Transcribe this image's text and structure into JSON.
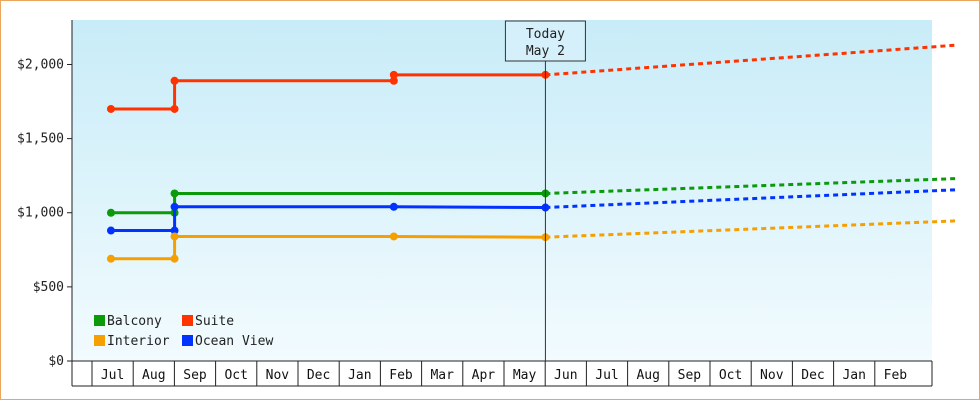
{
  "chart_data": {
    "type": "line",
    "today_marker": {
      "line1": "Today",
      "line2": "May 2"
    },
    "ylim": [
      0,
      2300
    ],
    "y_ticks": [
      {
        "value": 0,
        "label": "$0"
      },
      {
        "value": 500,
        "label": "$500"
      },
      {
        "value": 1000,
        "label": "$1,000"
      },
      {
        "value": 1500,
        "label": "$1,500"
      },
      {
        "value": 2000,
        "label": "$2,000"
      }
    ],
    "months": [
      "Jul",
      "Aug",
      "Sep",
      "Oct",
      "Nov",
      "Dec",
      "Jan",
      "Feb",
      "Mar",
      "Apr",
      "May",
      "Jun",
      "Jul",
      "Aug",
      "Sep",
      "Oct",
      "Nov",
      "Dec",
      "Jan",
      "Feb"
    ],
    "legend": [
      {
        "name": "Balcony",
        "color": "#0a9a0a"
      },
      {
        "name": "Suite",
        "color": "#ff3300"
      },
      {
        "name": "Interior",
        "color": "#f5a000"
      },
      {
        "name": "Ocean View",
        "color": "#0033ff"
      }
    ],
    "series": [
      {
        "name": "Suite",
        "color": "#ff3300",
        "history": [
          [
            "2024-06-15",
            1700
          ],
          [
            "2024-08-01",
            1700
          ],
          [
            "2024-08-01",
            1890
          ],
          [
            "2025-01-10",
            1890
          ],
          [
            "2025-01-10",
            1930
          ],
          [
            "2025-05-02",
            1930
          ]
        ],
        "points": [
          [
            "2024-06-15",
            1700
          ],
          [
            "2024-08-01",
            1700
          ],
          [
            "2024-08-01",
            1890
          ],
          [
            "2025-01-10",
            1890
          ],
          [
            "2025-01-10",
            1930
          ],
          [
            "2025-05-02",
            1930
          ]
        ],
        "forecast": [
          [
            "2025-05-02",
            1930
          ],
          [
            "2026-03-01",
            2130
          ]
        ]
      },
      {
        "name": "Balcony",
        "color": "#0a9a0a",
        "history": [
          [
            "2024-06-15",
            1000
          ],
          [
            "2024-08-01",
            1000
          ],
          [
            "2024-08-01",
            1130
          ],
          [
            "2025-05-02",
            1130
          ]
        ],
        "points": [
          [
            "2024-06-15",
            1000
          ],
          [
            "2024-08-01",
            1000
          ],
          [
            "2024-08-01",
            1130
          ],
          [
            "2025-05-02",
            1130
          ]
        ],
        "forecast": [
          [
            "2025-05-02",
            1130
          ],
          [
            "2026-03-01",
            1230
          ]
        ]
      },
      {
        "name": "Ocean View",
        "color": "#0033ff",
        "history": [
          [
            "2024-06-15",
            880
          ],
          [
            "2024-08-01",
            880
          ],
          [
            "2024-08-01",
            1040
          ],
          [
            "2025-01-10",
            1040
          ],
          [
            "2025-05-02",
            1035
          ]
        ],
        "points": [
          [
            "2024-06-15",
            880
          ],
          [
            "2024-08-01",
            880
          ],
          [
            "2024-08-01",
            1040
          ],
          [
            "2025-01-10",
            1040
          ],
          [
            "2025-05-02",
            1035
          ]
        ],
        "forecast": [
          [
            "2025-05-02",
            1035
          ],
          [
            "2026-03-01",
            1155
          ]
        ]
      },
      {
        "name": "Interior",
        "color": "#f5a000",
        "history": [
          [
            "2024-06-15",
            690
          ],
          [
            "2024-08-01",
            690
          ],
          [
            "2024-08-01",
            840
          ],
          [
            "2025-01-10",
            840
          ],
          [
            "2025-05-02",
            835
          ]
        ],
        "points": [
          [
            "2024-06-15",
            690
          ],
          [
            "2024-08-01",
            690
          ],
          [
            "2024-08-01",
            840
          ],
          [
            "2025-01-10",
            840
          ],
          [
            "2025-05-02",
            835
          ]
        ],
        "forecast": [
          [
            "2025-05-02",
            835
          ],
          [
            "2026-03-01",
            945
          ]
        ]
      }
    ]
  }
}
